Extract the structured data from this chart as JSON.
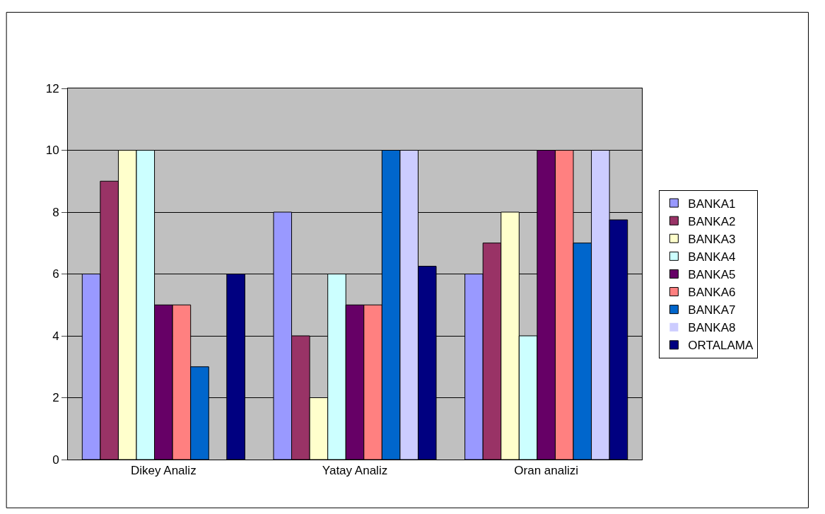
{
  "chart_data": {
    "type": "bar",
    "categories": [
      "Dikey Analiz",
      "Yatay Analiz",
      "Oran analizi"
    ],
    "series": [
      {
        "name": "BANKA1",
        "color": "#9999ff",
        "values": [
          6,
          8,
          6
        ]
      },
      {
        "name": "BANKA2",
        "color": "#993366",
        "values": [
          9,
          4,
          7
        ]
      },
      {
        "name": "BANKA3",
        "color": "#ffffcc",
        "values": [
          10,
          2,
          8
        ]
      },
      {
        "name": "BANKA4",
        "color": "#ccffff",
        "values": [
          10,
          6,
          4
        ]
      },
      {
        "name": "BANKA5",
        "color": "#660066",
        "values": [
          5,
          5,
          10
        ]
      },
      {
        "name": "BANKA6",
        "color": "#ff8080",
        "values": [
          5,
          5,
          10
        ]
      },
      {
        "name": "BANKA7",
        "color": "#0066cc",
        "values": [
          3,
          10,
          7
        ]
      },
      {
        "name": "BANKA8",
        "color": "#ccccff",
        "values": [
          0,
          10,
          10
        ]
      },
      {
        "name": "ORTALAMA",
        "color": "#000080",
        "values": [
          6,
          6.25,
          7.75
        ]
      }
    ],
    "ylim": [
      0,
      12
    ],
    "yticks": [
      0,
      2,
      4,
      6,
      8,
      10,
      12
    ],
    "grid": "y",
    "legend": "right"
  }
}
